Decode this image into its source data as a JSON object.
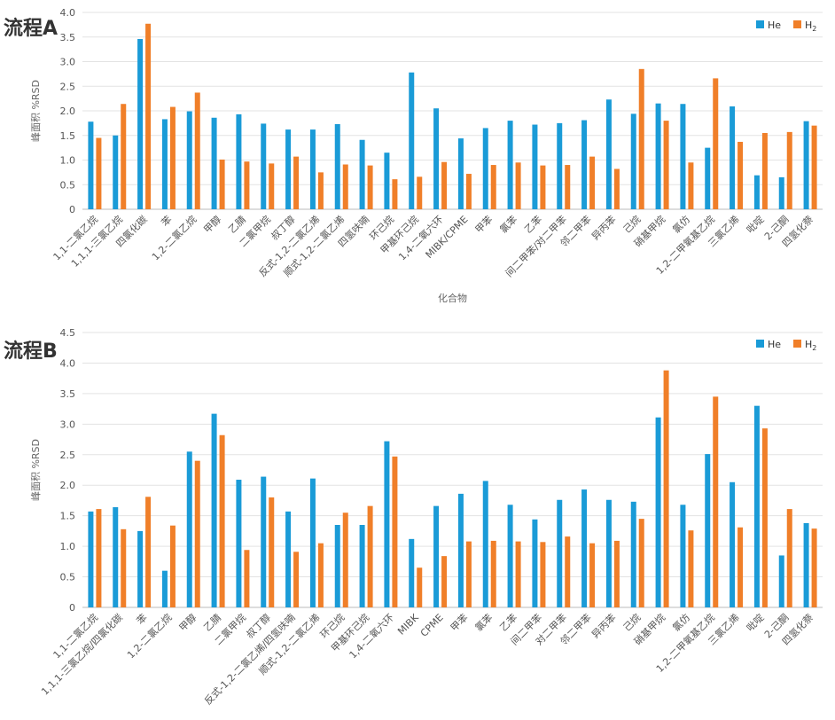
{
  "chart_data": [
    {
      "type": "bar",
      "title": "流程A",
      "xlabel": "化合物",
      "ylabel": "峰面积 %RSD",
      "ylim": [
        0,
        4.0
      ],
      "yticks": [
        "0",
        "0.5",
        "1.0",
        "1.5",
        "2.0",
        "2.5",
        "3.0",
        "3.5",
        "4.0"
      ],
      "legend": {
        "position": "top-right",
        "items": [
          {
            "label": "He"
          },
          {
            "label": "H",
            "sub": "2"
          }
        ]
      },
      "categories": [
        "1,1-二氯乙烷",
        "1,1,1-三氯乙烷",
        "四氯化碳",
        "苯",
        "1,2-二氯乙烷",
        "甲醇",
        "乙腈",
        "二氯甲烷",
        "叔丁醇",
        "反式-1,2-二氯乙烯",
        "顺式-1,2-二氯乙烯",
        "四氢呋喃",
        "环己烷",
        "甲基环己烷",
        "1,4-二氧六环",
        "MIBK/CPME",
        "甲苯",
        "氯苯",
        "乙苯",
        "间二甲苯/对二甲苯",
        "邻二甲苯",
        "异丙苯",
        "己烷",
        "硝基甲烷",
        "氯仿",
        "1,2-二甲氧基乙烷",
        "三氯乙烯",
        "吡啶",
        "2-己酮",
        "四氢化萘"
      ],
      "series": [
        {
          "name": "He",
          "color": "#1a9bd7",
          "values": [
            1.78,
            1.5,
            3.46,
            1.83,
            1.99,
            1.86,
            1.93,
            1.74,
            1.62,
            1.62,
            1.73,
            1.41,
            1.15,
            2.78,
            2.05,
            1.44,
            1.65,
            1.8,
            1.72,
            1.75,
            1.81,
            2.23,
            1.94,
            2.15,
            2.14,
            1.25,
            2.09,
            0.69,
            0.65,
            1.79
          ]
        },
        {
          "name": "H2",
          "color": "#f07f29",
          "values": [
            1.45,
            2.14,
            3.77,
            2.08,
            2.37,
            1.01,
            0.97,
            0.93,
            1.07,
            0.75,
            0.91,
            0.89,
            0.61,
            0.66,
            0.96,
            0.72,
            0.9,
            0.95,
            0.89,
            0.9,
            1.07,
            0.82,
            2.85,
            1.8,
            0.95,
            2.66,
            1.37,
            1.55,
            1.57,
            1.7
          ]
        }
      ]
    },
    {
      "type": "bar",
      "title": "流程B",
      "xlabel": "",
      "ylabel": "峰面积 %RSD",
      "ylim": [
        0,
        4.5
      ],
      "yticks": [
        "0",
        "0.5",
        "1.0",
        "1.5",
        "2.0",
        "2.5",
        "3.0",
        "3.5",
        "4.0",
        "4.5"
      ],
      "legend": {
        "position": "top-right",
        "items": [
          {
            "label": "He"
          },
          {
            "label": "H",
            "sub": "2"
          }
        ]
      },
      "categories": [
        "1,1-二氯乙烷",
        "1,1,1-三氯乙烷/四氯化碳",
        "苯",
        "1,2-二氯乙烷",
        "甲醇",
        "乙腈",
        "二氯甲烷",
        "叔丁醇",
        "反式-1,2-二氯乙烯/四氢呋喃",
        "顺式-1,2-二氯乙烯",
        "环己烷",
        "甲基环己烷",
        "1,4-二氧六环",
        "MIBK",
        "CPME",
        "甲苯",
        "氯苯",
        "乙苯",
        "间二甲苯",
        "对二甲苯",
        "邻二甲苯",
        "异丙苯",
        "己烷",
        "硝基甲烷",
        "氯仿",
        "1,2-二甲氧基乙烷",
        "三氯乙烯",
        "吡啶",
        "2-己酮",
        "四氢化萘"
      ],
      "series": [
        {
          "name": "He",
          "color": "#1a9bd7",
          "values": [
            1.57,
            1.64,
            1.25,
            0.6,
            2.55,
            3.17,
            2.09,
            2.14,
            1.57,
            2.11,
            1.35,
            1.35,
            2.72,
            1.12,
            1.66,
            1.86,
            2.07,
            1.68,
            1.44,
            1.76,
            1.93,
            1.76,
            1.73,
            3.11,
            1.68,
            2.51,
            2.05,
            3.3,
            0.85,
            1.38
          ]
        },
        {
          "name": "H2",
          "color": "#f07f29",
          "values": [
            1.61,
            1.28,
            1.81,
            1.34,
            2.4,
            2.82,
            0.94,
            1.8,
            0.91,
            1.05,
            1.55,
            1.66,
            2.47,
            0.65,
            0.84,
            1.08,
            1.09,
            1.08,
            1.07,
            1.16,
            1.05,
            1.09,
            1.45,
            3.88,
            1.26,
            3.45,
            1.31,
            2.93,
            1.61,
            1.29
          ]
        }
      ]
    }
  ]
}
